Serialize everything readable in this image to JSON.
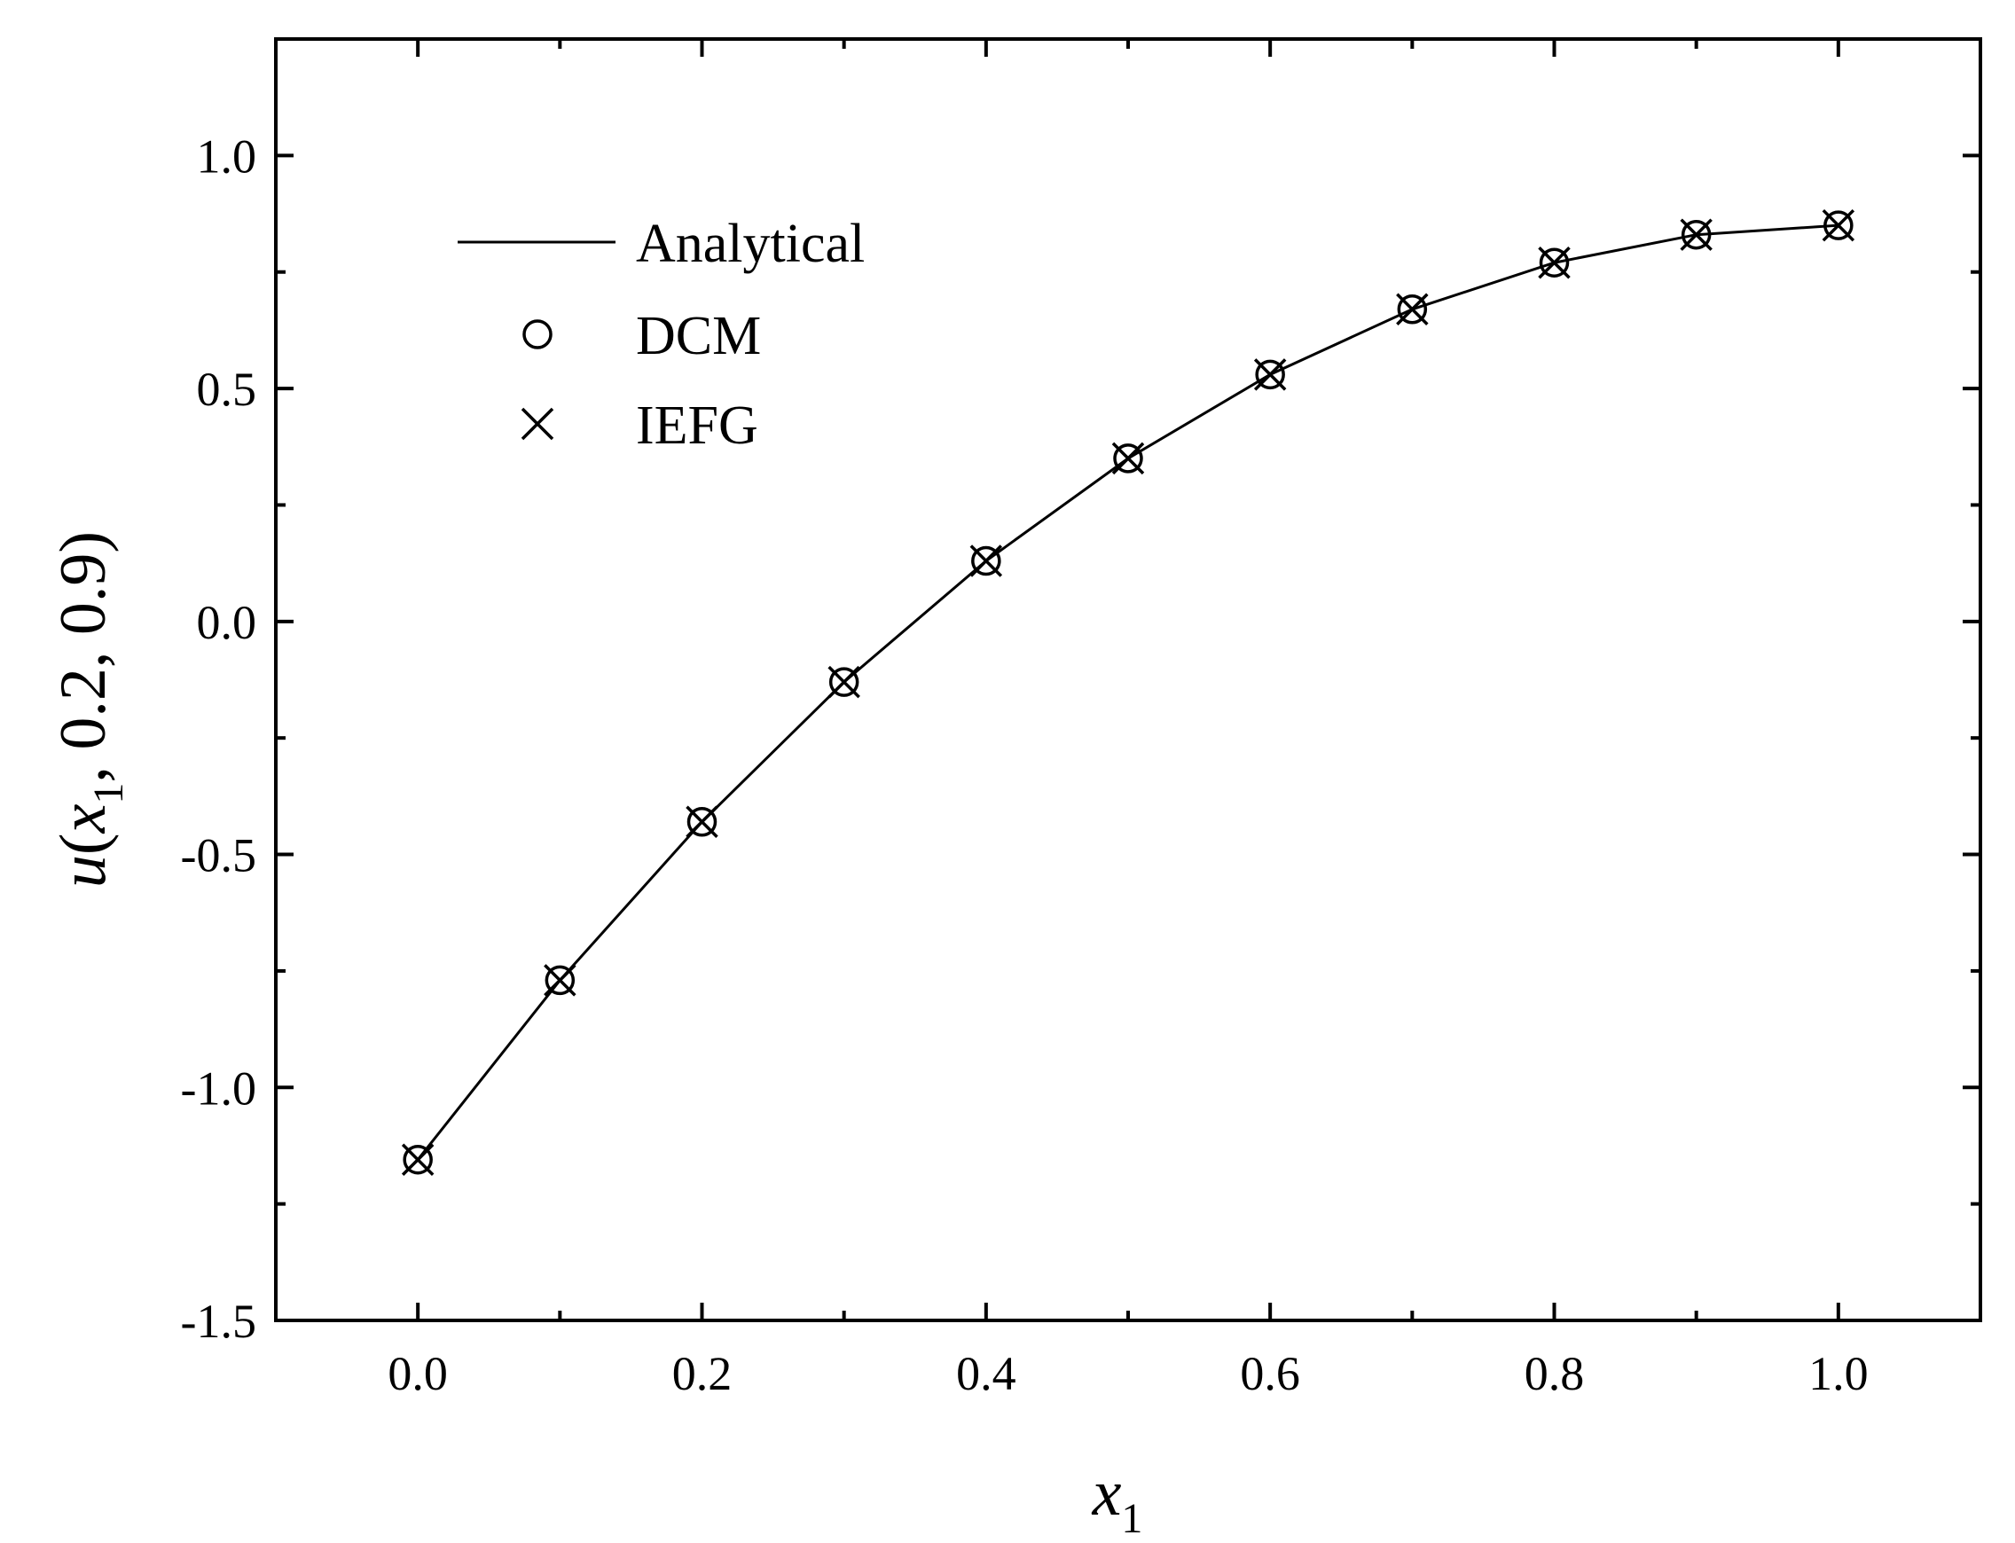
{
  "chart_data": {
    "type": "line",
    "title": "",
    "xlabel": {
      "var": "x",
      "sub": "1"
    },
    "ylabel": {
      "prefix": "u(",
      "var": "x",
      "sub": "1",
      "suffix": ", 0.2, 0.9)"
    },
    "xlim": [
      -0.1,
      1.1
    ],
    "ylim": [
      -1.5,
      1.25
    ],
    "xticks": [
      0.0,
      0.2,
      0.4,
      0.6,
      0.8,
      1.0
    ],
    "xtick_labels": [
      "0.0",
      "0.2",
      "0.4",
      "0.6",
      "0.8",
      "1.0"
    ],
    "yticks": [
      -1.5,
      -1.0,
      -0.5,
      0.0,
      0.5,
      1.0
    ],
    "ytick_labels": [
      "-1.5",
      "-1.0",
      "-0.5",
      "0.0",
      "0.5",
      "1.0"
    ],
    "grid": false,
    "legend_position": "top-left",
    "x": [
      0.0,
      0.1,
      0.2,
      0.3,
      0.4,
      0.5,
      0.6,
      0.7,
      0.8,
      0.9,
      1.0
    ],
    "series": [
      {
        "name": "Analytical",
        "style": "line",
        "values": [
          -1.155,
          -0.77,
          -0.43,
          -0.13,
          0.13,
          0.35,
          0.53,
          0.67,
          0.77,
          0.83,
          0.85
        ]
      },
      {
        "name": "DCM",
        "style": "circle",
        "values": [
          -1.155,
          -0.77,
          -0.43,
          -0.13,
          0.13,
          0.35,
          0.53,
          0.67,
          0.77,
          0.83,
          0.85
        ]
      },
      {
        "name": "IEFG",
        "style": "cross",
        "values": [
          -1.155,
          -0.77,
          -0.43,
          -0.13,
          0.13,
          0.35,
          0.53,
          0.67,
          0.77,
          0.83,
          0.85
        ]
      }
    ],
    "colors": {
      "line": "#000000",
      "background": "#ffffff"
    }
  }
}
